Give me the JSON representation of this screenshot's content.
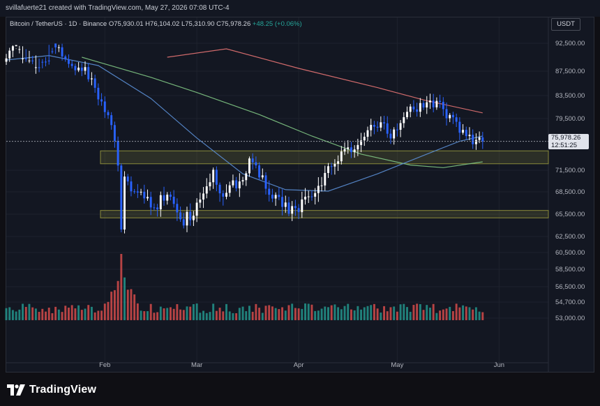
{
  "header": {
    "credit": "svillafuerte21 created with TradingView.com, May 27, 2026 07:08 UTC-4",
    "symbol": "Bitcoin / TetherUS · 1D · Binance",
    "open": "O75,930.01",
    "high": "H76,104.02",
    "low": "L75,310.90",
    "close": "C75,978.26",
    "change": "+48.25 (+0.06%)"
  },
  "currency": "USDT",
  "last_price": {
    "value": "75,978.26",
    "countdown": "12:51:25"
  },
  "brand": {
    "name": "TradingView"
  },
  "colors": {
    "up": "#ffffff",
    "down": "#2962ff",
    "vol_up": "#26a69a",
    "vol_down": "#ef5350",
    "ma_red": "#e57373",
    "ma_green": "#81c784",
    "ma_blue": "#5b8fd6",
    "zone": "#8a8a3a"
  },
  "chart_data": {
    "type": "candlestick",
    "title": "",
    "xlabel": "",
    "ylabel": "",
    "y_ticks": [
      92500,
      87500,
      83500,
      79500,
      71500,
      68500,
      65500,
      62500,
      60500,
      58500,
      56500,
      54700,
      53000
    ],
    "y_tick_labels": [
      "92,500.00",
      "87,500.00",
      "83,500.00",
      "79,500.00",
      "71,500.00",
      "68,500.00",
      "65,500.00",
      "62,500.00",
      "60,500.00",
      "58,500.00",
      "56,500.00",
      "54,700.00",
      "53,000.00"
    ],
    "x_ticks": [
      {
        "label": "Feb",
        "date": "2026-02-01"
      },
      {
        "label": "Mar",
        "date": "2026-03-01"
      },
      {
        "label": "Apr",
        "date": "2026-04-01"
      },
      {
        "label": "May",
        "date": "2026-05-01"
      },
      {
        "label": "Jun",
        "date": "2026-06-01"
      }
    ],
    "x_range": [
      "2026-01-02",
      "2026-06-16"
    ],
    "close_series": [
      {
        "date": "2026-01-02",
        "close": 90600
      },
      {
        "date": "2026-01-05",
        "close": 93200
      },
      {
        "date": "2026-01-08",
        "close": 95000
      },
      {
        "date": "2026-01-11",
        "close": 96500
      },
      {
        "date": "2026-01-14",
        "close": 95400
      },
      {
        "date": "2026-01-17",
        "close": 92000
      },
      {
        "date": "2026-01-20",
        "close": 88800
      },
      {
        "date": "2026-01-23",
        "close": 88300
      },
      {
        "date": "2026-01-26",
        "close": 88100
      },
      {
        "date": "2026-01-29",
        "close": 85000
      },
      {
        "date": "2026-02-01",
        "close": 80500
      },
      {
        "date": "2026-02-03",
        "close": 78500
      },
      {
        "date": "2026-02-05",
        "close": 72500
      },
      {
        "date": "2026-02-06",
        "close": 63500
      },
      {
        "date": "2026-02-07",
        "close": 70000
      },
      {
        "date": "2026-02-10",
        "close": 69000
      },
      {
        "date": "2026-02-13",
        "close": 68500
      },
      {
        "date": "2026-02-16",
        "close": 66500
      },
      {
        "date": "2026-02-19",
        "close": 68000
      },
      {
        "date": "2026-02-22",
        "close": 67000
      },
      {
        "date": "2026-02-25",
        "close": 64500
      },
      {
        "date": "2026-02-28",
        "close": 66000
      },
      {
        "date": "2026-03-03",
        "close": 68200
      },
      {
        "date": "2026-03-06",
        "close": 70800
      },
      {
        "date": "2026-03-09",
        "close": 67500
      },
      {
        "date": "2026-03-12",
        "close": 69200
      },
      {
        "date": "2026-03-15",
        "close": 71000
      },
      {
        "date": "2026-03-18",
        "close": 73200
      },
      {
        "date": "2026-03-21",
        "close": 70000
      },
      {
        "date": "2026-03-24",
        "close": 68500
      },
      {
        "date": "2026-03-27",
        "close": 67000
      },
      {
        "date": "2026-03-30",
        "close": 65800
      },
      {
        "date": "2026-04-02",
        "close": 67000
      },
      {
        "date": "2026-04-05",
        "close": 67800
      },
      {
        "date": "2026-04-08",
        "close": 69800
      },
      {
        "date": "2026-04-11",
        "close": 72000
      },
      {
        "date": "2026-04-14",
        "close": 73500
      },
      {
        "date": "2026-04-17",
        "close": 74800
      },
      {
        "date": "2026-04-20",
        "close": 75800
      },
      {
        "date": "2026-04-23",
        "close": 77800
      },
      {
        "date": "2026-04-26",
        "close": 78500
      },
      {
        "date": "2026-04-29",
        "close": 76800
      },
      {
        "date": "2026-05-02",
        "close": 78600
      },
      {
        "date": "2026-05-05",
        "close": 80800
      },
      {
        "date": "2026-05-08",
        "close": 81800
      },
      {
        "date": "2026-05-11",
        "close": 82300
      },
      {
        "date": "2026-05-14",
        "close": 81600
      },
      {
        "date": "2026-05-17",
        "close": 79500
      },
      {
        "date": "2026-05-20",
        "close": 77600
      },
      {
        "date": "2026-05-23",
        "close": 76200
      },
      {
        "date": "2026-05-26",
        "close": 76800
      },
      {
        "date": "2026-05-27",
        "close": 75978.26
      }
    ],
    "moving_averages": [
      {
        "color": "ma_red",
        "points": [
          {
            "date": "2026-02-20",
            "value": 95000
          },
          {
            "date": "2026-03-10",
            "value": 91500
          },
          {
            "date": "2026-04-01",
            "value": 88000
          },
          {
            "date": "2026-04-25",
            "value": 84800
          },
          {
            "date": "2026-05-10",
            "value": 82600
          },
          {
            "date": "2026-05-27",
            "value": 80500
          }
        ]
      },
      {
        "color": "ma_green",
        "points": [
          {
            "date": "2026-01-25",
            "value": 90000
          },
          {
            "date": "2026-02-15",
            "value": 86500
          },
          {
            "date": "2026-03-01",
            "value": 84000
          },
          {
            "date": "2026-03-20",
            "value": 80200
          },
          {
            "date": "2026-04-05",
            "value": 76800
          },
          {
            "date": "2026-04-20",
            "value": 74000
          },
          {
            "date": "2026-05-05",
            "value": 72300
          },
          {
            "date": "2026-05-15",
            "value": 71900
          },
          {
            "date": "2026-05-27",
            "value": 72800
          }
        ]
      },
      {
        "color": "ma_blue",
        "points": [
          {
            "date": "2026-01-02",
            "value": 89500
          },
          {
            "date": "2026-01-15",
            "value": 90300
          },
          {
            "date": "2026-01-30",
            "value": 88500
          },
          {
            "date": "2026-02-15",
            "value": 83000
          },
          {
            "date": "2026-03-01",
            "value": 76500
          },
          {
            "date": "2026-03-15",
            "value": 71000
          },
          {
            "date": "2026-03-28",
            "value": 68800
          },
          {
            "date": "2026-04-10",
            "value": 68600
          },
          {
            "date": "2026-04-25",
            "value": 71000
          },
          {
            "date": "2026-05-10",
            "value": 74000
          },
          {
            "date": "2026-05-20",
            "value": 76000
          },
          {
            "date": "2026-05-27",
            "value": 76800
          }
        ]
      }
    ],
    "zones": [
      {
        "from": 72500,
        "to": 74500
      },
      {
        "from": 65000,
        "to": 66000
      }
    ],
    "volume_peak_date": "2026-02-06",
    "grid": true,
    "legend": "none"
  }
}
